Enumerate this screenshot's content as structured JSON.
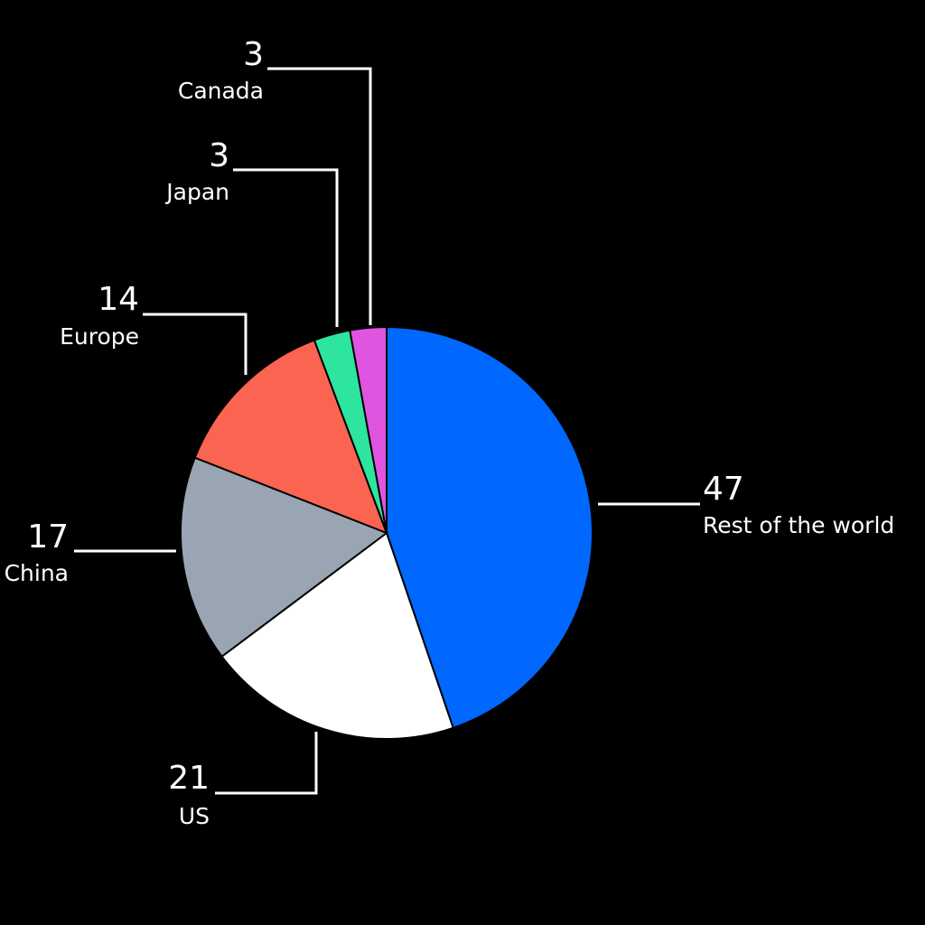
{
  "chart_data": {
    "type": "pie",
    "categories": [
      "Rest of the world",
      "US",
      "China",
      "Europe",
      "Japan",
      "Canada"
    ],
    "values": [
      47,
      21,
      17,
      14,
      3,
      3
    ],
    "colors": [
      "#0068ff",
      "#ffffff",
      "#9aa5b4",
      "#fa6450",
      "#2ee5a0",
      "#e055e0"
    ]
  }
}
